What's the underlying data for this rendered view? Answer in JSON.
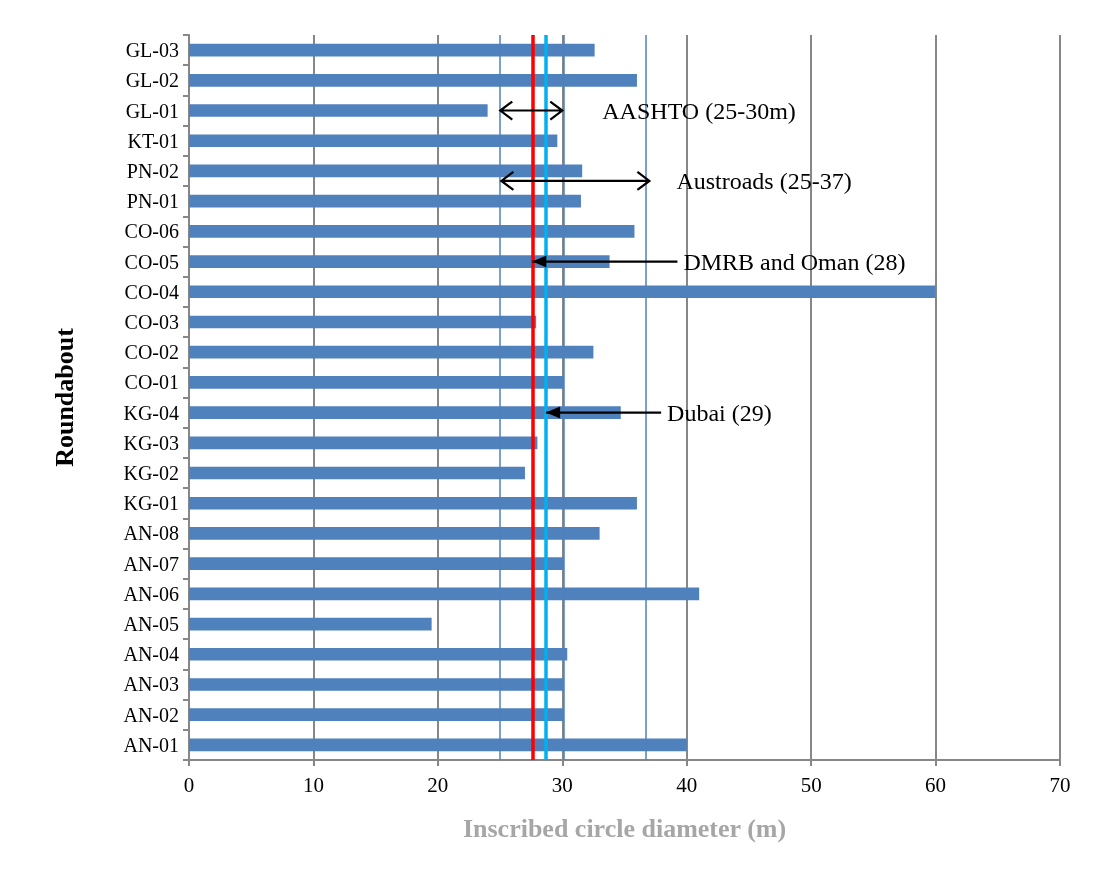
{
  "chart_data": {
    "type": "bar",
    "orientation": "horizontal",
    "xlabel": "Inscribed circle diameter (m)",
    "ylabel": "Roundabout",
    "categories": [
      "GL-03",
      "GL-02",
      "GL-01",
      "KT-01",
      "PN-02",
      "PN-01",
      "CO-06",
      "CO-05",
      "CO-04",
      "CO-03",
      "CO-02",
      "CO-01",
      "KG-04",
      "KG-03",
      "KG-02",
      "KG-01",
      "AN-08",
      "AN-07",
      "AN-06",
      "AN-05",
      "AN-04",
      "AN-03",
      "AN-02",
      "AN-01"
    ],
    "values": [
      32.6,
      36.0,
      24.0,
      29.6,
      31.6,
      31.5,
      35.8,
      33.8,
      60.0,
      27.9,
      32.5,
      30.1,
      34.7,
      28.0,
      27.0,
      36.0,
      33.0,
      30.1,
      41.0,
      19.5,
      30.4,
      30.1,
      30.1,
      40.0
    ],
    "color": "#4f81bd",
    "xlim": [
      0,
      70
    ],
    "xticks": [
      0,
      10,
      20,
      30,
      40,
      50,
      60,
      70
    ],
    "grid": "x",
    "ref_lines": [
      {
        "axis": "x",
        "value": 25,
        "color": "#4f81bd"
      },
      {
        "axis": "x",
        "value": 30.1,
        "color": "#4f81bd"
      },
      {
        "axis": "x",
        "value": 36.7,
        "color": "#4f81bd"
      },
      {
        "axis": "x",
        "value": 27.6,
        "color": "#ff0000"
      },
      {
        "axis": "x",
        "value": 28.7,
        "color": "#00b0f0"
      }
    ],
    "annotations": [
      {
        "text": "AASHTO (25-30m)",
        "x": 30,
        "y": "GL-01"
      },
      {
        "text": "Austroads (25-37)",
        "x": 37,
        "y": "PN-02"
      },
      {
        "text": "DMRB and Oman (28)",
        "x": 27.6,
        "y": "CO-05"
      },
      {
        "text": "Dubai (29)",
        "x": 28.7,
        "y": "KG-04"
      }
    ]
  }
}
